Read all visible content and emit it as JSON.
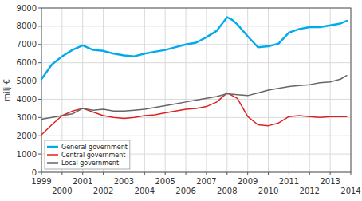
{
  "chart_data": {
    "type": "line",
    "y_label": "milj €",
    "xlim": [
      1999,
      2014
    ],
    "ylim": [
      0,
      9000
    ],
    "xticks": [
      1999,
      2000,
      2001,
      2002,
      2003,
      2004,
      2005,
      2006,
      2007,
      2008,
      2009,
      2010,
      2011,
      2012,
      2013,
      2014
    ],
    "yticks": [
      0,
      1000,
      2000,
      3000,
      4000,
      5000,
      6000,
      7000,
      8000,
      9000
    ],
    "grid": true,
    "legend": "lower left",
    "series": [
      {
        "name": "General government",
        "color": "#00aaee",
        "x": [
          1999,
          1999.5,
          2000,
          2000.5,
          2001,
          2001.5,
          2002,
          2002.5,
          2003,
          2003.5,
          2004,
          2004.5,
          2005,
          2005.5,
          2006,
          2006.5,
          2007,
          2007.5,
          2008,
          2008.25,
          2008.5,
          2009,
          2009.5,
          2010,
          2010.5,
          2011,
          2011.5,
          2012,
          2012.5,
          2013,
          2013.5,
          2013.8
        ],
        "values": [
          5100,
          5900,
          6350,
          6700,
          6950,
          6700,
          6650,
          6500,
          6400,
          6350,
          6500,
          6600,
          6700,
          6850,
          7000,
          7100,
          7400,
          7750,
          8500,
          8350,
          8100,
          7450,
          6850,
          6900,
          7050,
          7650,
          7850,
          7950,
          7950,
          8050,
          8150,
          8300
        ]
      },
      {
        "name": "Central government",
        "color": "#dd2222",
        "x": [
          1999,
          1999.5,
          2000,
          2000.5,
          2001,
          2001.5,
          2002,
          2002.5,
          2003,
          2003.5,
          2004,
          2004.5,
          2005,
          2005.5,
          2006,
          2006.5,
          2007,
          2007.5,
          2008,
          2008.25,
          2008.5,
          2009,
          2009.5,
          2010,
          2010.5,
          2011,
          2011.5,
          2012,
          2012.5,
          2013,
          2013.5,
          2013.8
        ],
        "values": [
          2050,
          2600,
          3100,
          3350,
          3500,
          3300,
          3100,
          3000,
          2950,
          3000,
          3100,
          3150,
          3250,
          3350,
          3450,
          3500,
          3600,
          3850,
          4350,
          4200,
          4050,
          3050,
          2600,
          2550,
          2700,
          3050,
          3100,
          3050,
          3000,
          3050,
          3050,
          3050
        ]
      },
      {
        "name": "Local government",
        "color": "#666666",
        "x": [
          1999,
          1999.5,
          2000,
          2000.5,
          2001,
          2001.5,
          2002,
          2002.5,
          2003,
          2003.5,
          2004,
          2004.5,
          2005,
          2005.5,
          2006,
          2006.5,
          2007,
          2007.5,
          2008,
          2008.5,
          2009,
          2009.5,
          2010,
          2010.5,
          2011,
          2011.5,
          2012,
          2012.5,
          2013,
          2013.5,
          2013.8
        ],
        "values": [
          2900,
          3000,
          3100,
          3200,
          3500,
          3400,
          3450,
          3350,
          3350,
          3400,
          3450,
          3550,
          3650,
          3750,
          3850,
          3950,
          4050,
          4150,
          4300,
          4250,
          4200,
          4350,
          4500,
          4600,
          4700,
          4750,
          4800,
          4900,
          4950,
          5100,
          5300
        ]
      }
    ]
  }
}
